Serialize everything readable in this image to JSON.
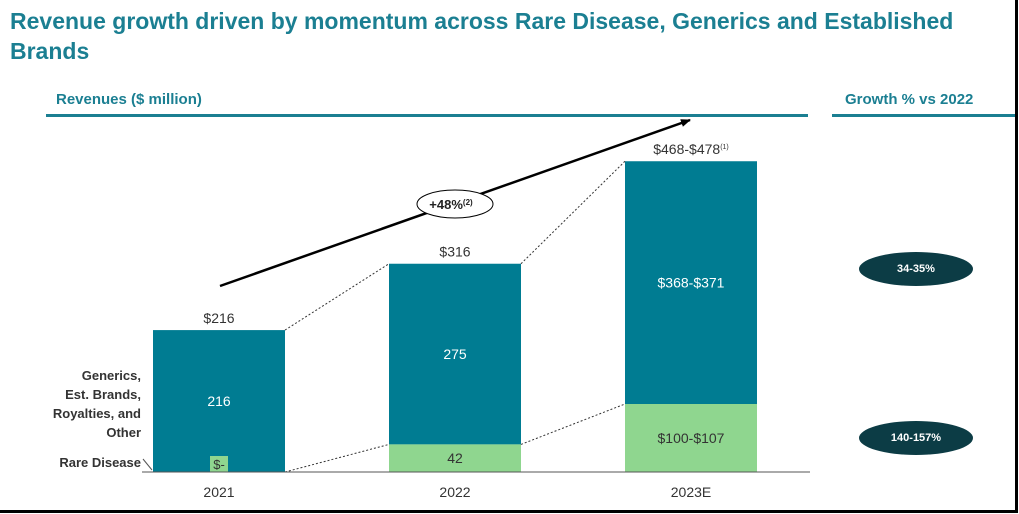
{
  "title": "Revenue growth driven by momentum across Rare Disease, Generics and Established Brands",
  "left_header": "Revenues ($ million)",
  "right_header": "Growth % vs 2022",
  "category_labels": {
    "top_lines": [
      "Generics,",
      "Est. Brands,",
      "Royalties, and",
      "Other"
    ],
    "bottom": "Rare Disease"
  },
  "growth": {
    "label": "+48%",
    "footnote": "(2)"
  },
  "growth_pills": [
    "34-35%",
    "140-157%"
  ],
  "colors": {
    "accent": "#1b7f92",
    "generics": "#007c92",
    "rare": "#8fd68f",
    "pill": "#0c3c45"
  },
  "chart_data": {
    "type": "bar",
    "stacked": true,
    "categories": [
      "2021",
      "2022",
      "2023E"
    ],
    "series": [
      {
        "name": "Rare Disease",
        "values": [
          0,
          42,
          103.5
        ],
        "labels": [
          "$-",
          "42",
          "$100-$107"
        ]
      },
      {
        "name": "Generics, Est. Brands, Royalties, and Other",
        "values": [
          216,
          275,
          369.5
        ],
        "labels": [
          "216",
          "275",
          "$368-$371"
        ]
      }
    ],
    "totals": {
      "values": [
        216,
        316,
        473
      ],
      "labels": [
        "$216",
        "$316",
        "$468-$478"
      ],
      "footnotes": [
        "",
        "",
        "(1)"
      ]
    },
    "grid": false,
    "legend": "left"
  }
}
